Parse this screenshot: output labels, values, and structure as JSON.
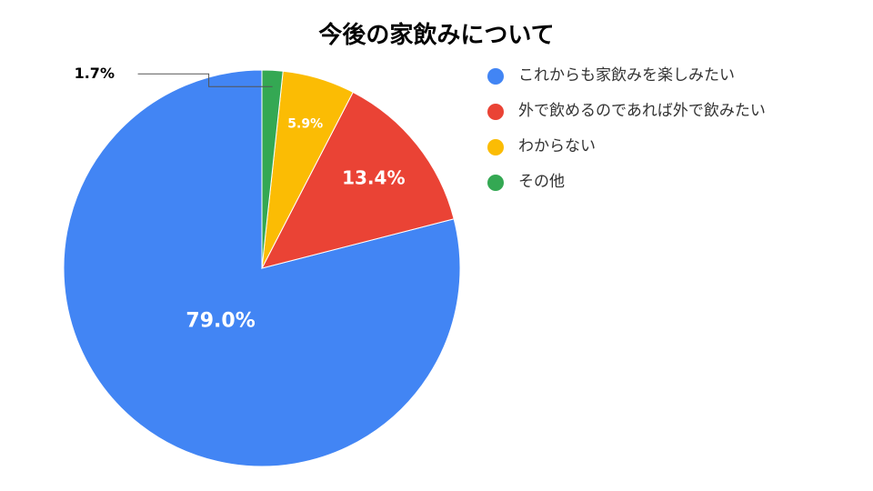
{
  "chart_data": {
    "type": "pie",
    "title": "今後の家飲みについて",
    "categories": [
      "これからも家飲みを楽しみたい",
      "外で飲めるのであれば外で飲みたい",
      "わからない",
      "その他"
    ],
    "values": [
      79.0,
      13.4,
      5.9,
      1.7
    ],
    "labels": [
      "79.0%",
      "13.4%",
      "5.9%",
      "1.7%"
    ],
    "colors": [
      "#4285F4",
      "#EA4335",
      "#FBBC04",
      "#34A853"
    ],
    "legend_position": "right"
  }
}
